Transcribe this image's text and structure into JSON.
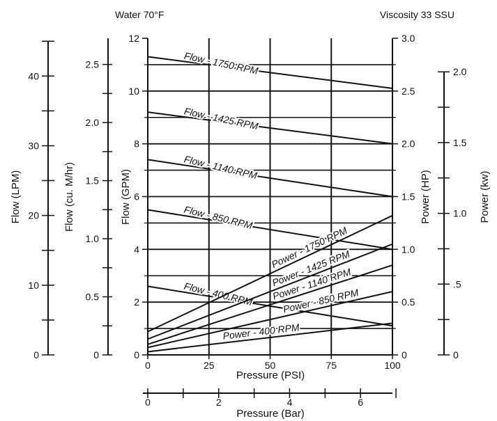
{
  "header": {
    "left": "Water 70°F",
    "right": "Viscosity 33 SSU"
  },
  "chart_data": {
    "type": "line",
    "x": {
      "label": "Pressure (PSI)",
      "range": [
        0,
        100
      ],
      "ticks": [
        "0",
        "25",
        "50",
        "75",
        "100"
      ]
    },
    "x2": {
      "label": "Pressure (Bar)",
      "range": [
        0,
        6.9
      ],
      "ticks": [
        "0",
        "2",
        "4",
        "6"
      ]
    },
    "y_gpm": {
      "label": "Flow (GPM)",
      "range": [
        0,
        12
      ],
      "ticks": [
        "0",
        "2",
        "4",
        "6",
        "8",
        "10",
        "12"
      ]
    },
    "y_lpm": {
      "label": "Flow (LPM)",
      "ticks": [
        "0",
        "10",
        "20",
        "30",
        "40"
      ]
    },
    "y_m3hr": {
      "label": "Flow (cu. M/hr)",
      "ticks": [
        "0",
        "0.5",
        "1.0",
        "1.5",
        "2.0",
        "2.5"
      ]
    },
    "y_hp": {
      "label": "Power (HP)",
      "range": [
        0,
        3.0
      ],
      "ticks": [
        "0",
        "0.5",
        "1.0",
        "1.5",
        "2.0",
        "2.5",
        "3.0"
      ]
    },
    "y_kw": {
      "label": "Power (kw)",
      "ticks": [
        "0",
        ".5",
        "1.0",
        "1.5",
        "2.0"
      ]
    },
    "flow_series": [
      {
        "name": "Flow - 1750 RPM",
        "x": [
          0,
          100
        ],
        "y": [
          11.3,
          10.1
        ]
      },
      {
        "name": "Flow - 1425 RPM",
        "x": [
          0,
          100
        ],
        "y": [
          9.2,
          8.0
        ]
      },
      {
        "name": "Flow - 1140 RPM",
        "x": [
          0,
          100
        ],
        "y": [
          7.4,
          6.0
        ]
      },
      {
        "name": "Flow - 850 RPM",
        "x": [
          0,
          100
        ],
        "y": [
          5.5,
          4.0
        ]
      },
      {
        "name": "Flow - 400 RPM",
        "x": [
          0,
          100
        ],
        "y": [
          2.6,
          1.1
        ]
      }
    ],
    "power_series": [
      {
        "name": "Power - 1750 RPM",
        "x": [
          0,
          100
        ],
        "y": [
          0.22,
          1.32
        ]
      },
      {
        "name": "Power - 1425 RPM",
        "x": [
          0,
          100
        ],
        "y": [
          0.15,
          1.05
        ]
      },
      {
        "name": "Power - 1140 RPM",
        "x": [
          0,
          100
        ],
        "y": [
          0.1,
          0.85
        ]
      },
      {
        "name": "Power - 850 RPM",
        "x": [
          0,
          100
        ],
        "y": [
          0.07,
          0.6
        ]
      },
      {
        "name": "Power - 400 RPM",
        "x": [
          0,
          100
        ],
        "y": [
          0.03,
          0.3
        ]
      }
    ],
    "grid": true
  }
}
